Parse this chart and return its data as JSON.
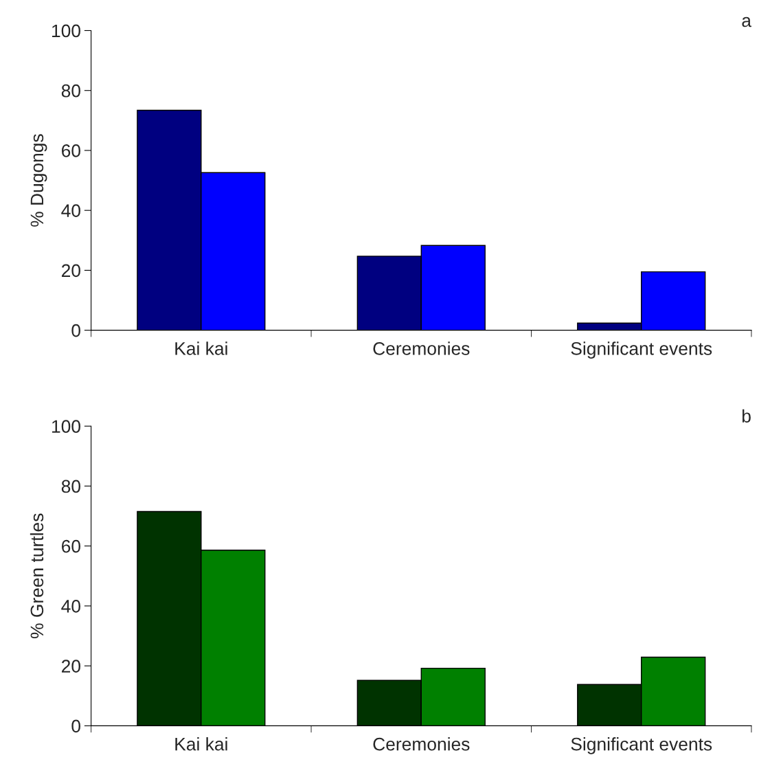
{
  "chart_data": [
    {
      "type": "bar",
      "ylabel": "% Dugongs",
      "categories": [
        "Kai kai",
        "Ceremonies",
        "Significant events"
      ],
      "series": [
        {
          "color": "#000080",
          "values": [
            73.4,
            24.7,
            2.4
          ]
        },
        {
          "color": "#0000ff",
          "values": [
            52.6,
            28.3,
            19.5
          ]
        }
      ],
      "ylim": [
        0,
        100
      ],
      "yticks": [
        0,
        20,
        40,
        60,
        80,
        100
      ],
      "grid": false,
      "legend": false,
      "annotations": [
        "a"
      ]
    },
    {
      "type": "bar",
      "ylabel": "% Green turtles",
      "categories": [
        "Kai kai",
        "Ceremonies",
        "Significant events"
      ],
      "series": [
        {
          "color": "#003300",
          "values": [
            71.5,
            15.2,
            13.8
          ]
        },
        {
          "color": "#008000",
          "values": [
            58.6,
            19.2,
            22.9
          ]
        }
      ],
      "ylim": [
        0,
        100
      ],
      "yticks": [
        0,
        20,
        40,
        60,
        80,
        100
      ],
      "grid": false,
      "legend": false,
      "annotations": [
        "b"
      ]
    }
  ]
}
